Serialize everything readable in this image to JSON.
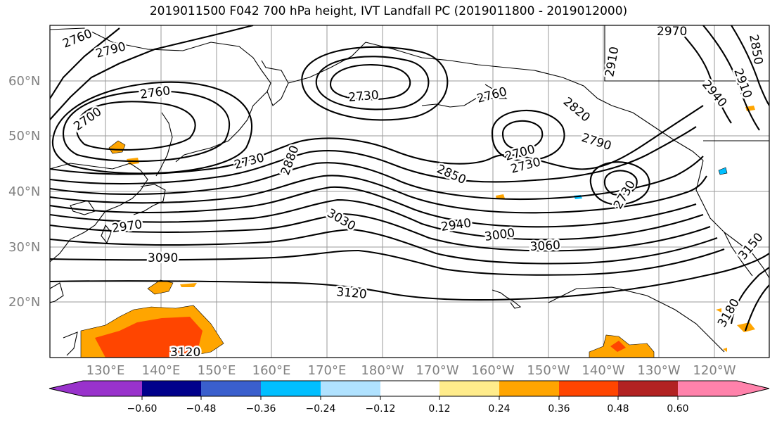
{
  "title": "2019011500 F042 700 hPa height, IVT Landfall PC (2019011800 - 2019012000)",
  "axes": {
    "lat_labels": [
      "60°N",
      "50°N",
      "40°N",
      "30°N",
      "20°N"
    ],
    "lon_labels": [
      "130°E",
      "140°E",
      "150°E",
      "160°E",
      "170°E",
      "180°W",
      "170°W",
      "160°W",
      "150°W",
      "140°W",
      "130°W",
      "120°W"
    ]
  },
  "contour_labels": [
    "2760",
    "2790",
    "2700",
    "2730",
    "2760",
    "2730",
    "2760",
    "2820",
    "2790",
    "2880",
    "2700",
    "2730",
    "2850",
    "2730",
    "3030",
    "2940",
    "3000",
    "3060",
    "2970",
    "3090",
    "3120",
    "3120",
    "3180",
    "3150",
    "2910",
    "2940",
    "2970",
    "2850",
    "2910"
  ],
  "colorbar": {
    "tick_labels": [
      "−0.60",
      "−0.48",
      "−0.36",
      "−0.24",
      "−0.12",
      "0.12",
      "0.24",
      "0.36",
      "0.48",
      "0.60"
    ],
    "colors": [
      "#9932cc",
      "#00008b",
      "#3a5fcd",
      "#00bfff",
      "#b0e2ff",
      "#ffffff",
      "#ffec8b",
      "#ffa500",
      "#ff4500",
      "#b22222",
      "#ff82ab"
    ]
  },
  "palette": {
    "grid": "#9a9a9a",
    "contour": "#000000",
    "positive_fill": "#ffa500",
    "strong_fill": "#ff4500"
  }
}
